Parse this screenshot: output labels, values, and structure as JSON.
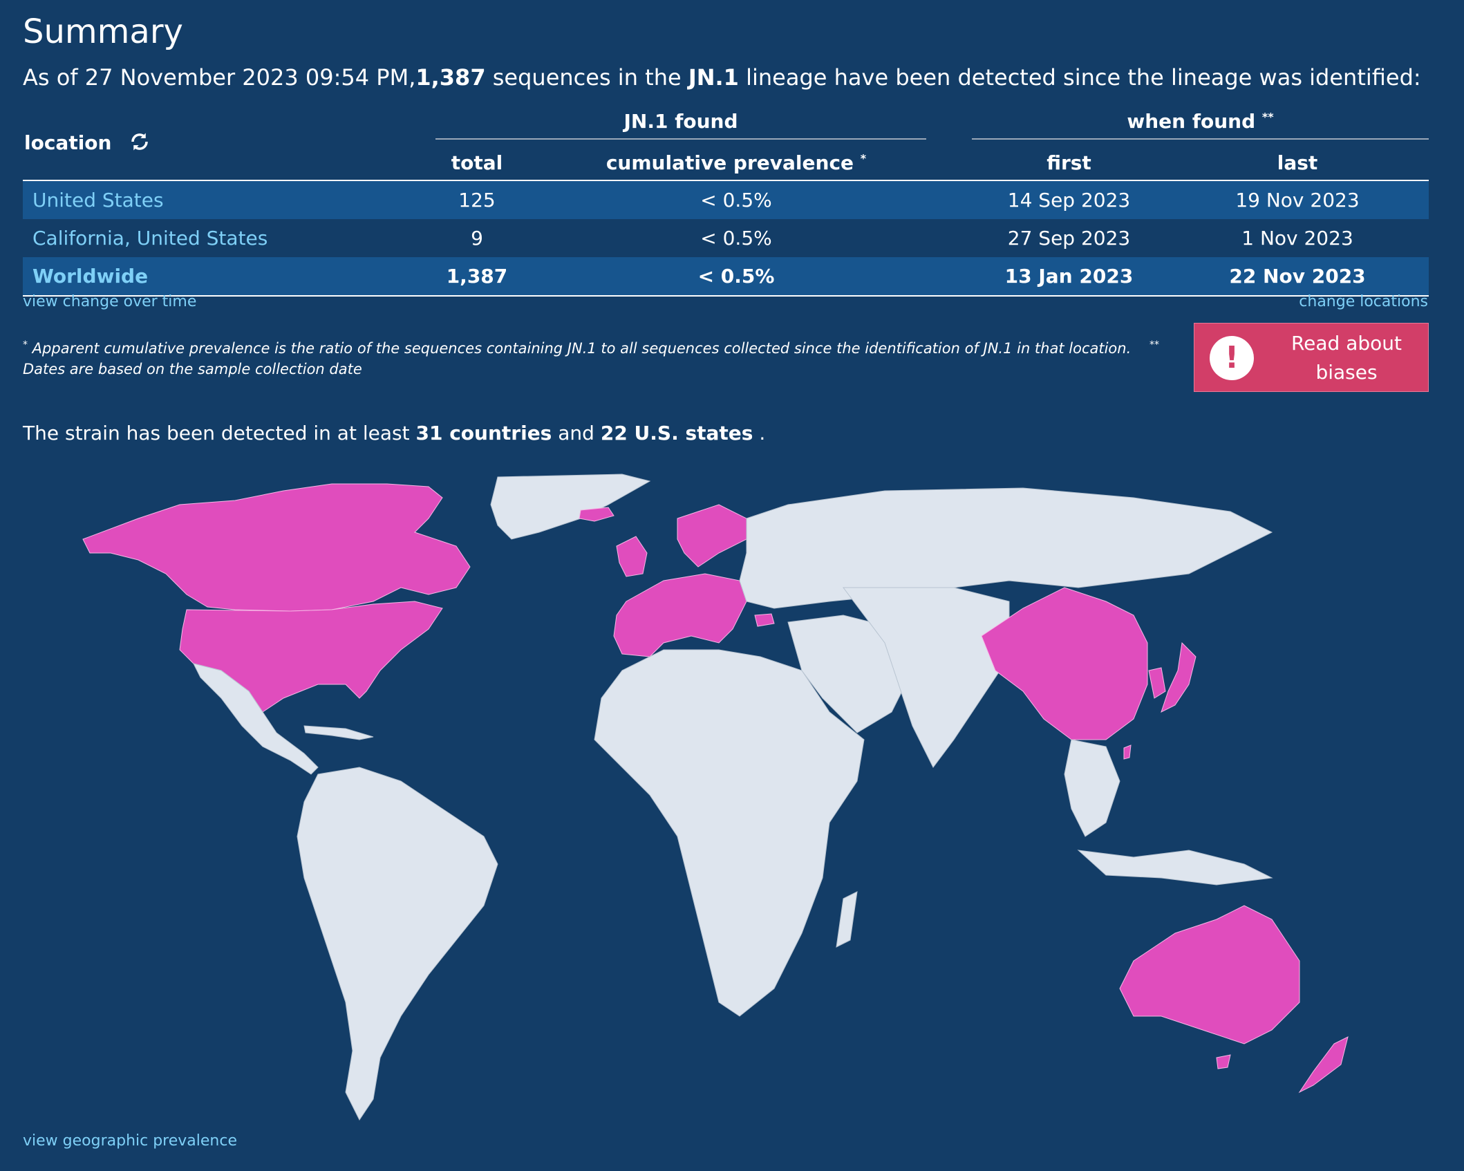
{
  "summary": {
    "title": "Summary",
    "intro_prefix": "As of 27 November 2023 09:54 PM,",
    "intro_count": "1,387",
    "intro_middle": " sequences in the ",
    "intro_lineage": "JN.1",
    "intro_suffix": " lineage have been detected since the lineage was identified:"
  },
  "table": {
    "location_header": "location",
    "refresh_icon": "refresh-icon",
    "group_found": "JN.1 found",
    "group_when": "when found",
    "group_when_mark": "**",
    "col_total": "total",
    "col_prevalence": "cumulative prevalence",
    "col_prevalence_mark": "*",
    "col_first": "first",
    "col_last": "last",
    "rows": [
      {
        "location": "United States",
        "total": "125",
        "prevalence": "< 0.5%",
        "first": "14 Sep 2023",
        "last": "19 Nov 2023"
      },
      {
        "location": "California, United States",
        "total": "9",
        "prevalence": "< 0.5%",
        "first": "27 Sep 2023",
        "last": "1 Nov 2023"
      },
      {
        "location": "Worldwide",
        "total": "1,387",
        "prevalence": "< 0.5%",
        "first": "13 Jan 2023",
        "last": "22 Nov 2023"
      }
    ]
  },
  "links": {
    "view_change": "view change over time",
    "change_locations": "change locations",
    "view_geo": "view geographic prevalence"
  },
  "footnote": {
    "mark1": "*",
    "text1": " Apparent cumulative prevalence is the ratio of the sequences containing JN.1 to all sequences collected since the identification of JN.1 in that location.",
    "mark2": "**",
    "text2": " Dates are based on the sample collection date"
  },
  "bias_button": {
    "icon": "exclamation-icon",
    "icon_glyph": "!",
    "label": "Read about biases"
  },
  "strain": {
    "prefix": "The strain has been detected in at least ",
    "countries": "31 countries",
    "middle": " and ",
    "states": "22 U.S. states",
    "suffix": " ."
  },
  "colors": {
    "background": "#133d67",
    "row_highlight": "#17558e",
    "link": "#7fd0f7",
    "land": "#dee5ee",
    "detected": "#e04dbd",
    "button": "#d23e68"
  }
}
